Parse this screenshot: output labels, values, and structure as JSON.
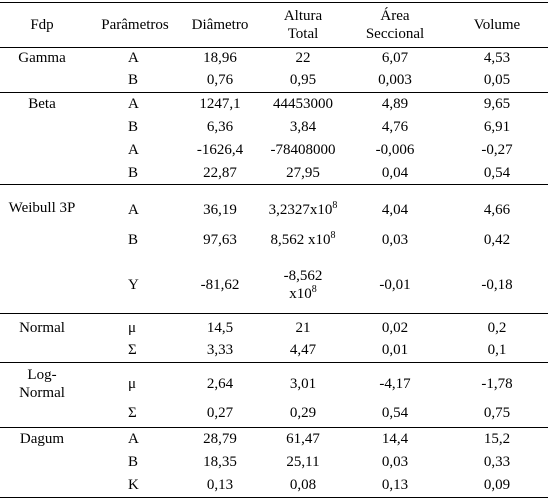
{
  "table": {
    "header": [
      "Fdp",
      "Parâmetros",
      "Diâmetro",
      "Altura Total",
      "Área Seccional",
      "Volume"
    ],
    "groups": [
      {
        "fdp": "Gamma",
        "rows": [
          [
            "A",
            "18,96",
            "22",
            "6,07",
            "4,53"
          ],
          [
            "B",
            "0,76",
            "0,95",
            "0,003",
            "0,05"
          ]
        ]
      },
      {
        "fdp": "Beta",
        "rows": [
          [
            "A",
            "1247,1",
            "44453000",
            "4,89",
            "9,65"
          ],
          [
            "B",
            "6,36",
            "3,84",
            "4,76",
            "6,91"
          ],
          [
            "A",
            "-1626,4",
            "-78408000",
            "-0,006",
            "-0,27"
          ],
          [
            "B",
            "22,87",
            "27,95",
            "0,04",
            "0,54"
          ]
        ]
      },
      {
        "fdp": "Weibull 3P",
        "rows": [
          [
            "A",
            "36,19",
            {
              "base": "3,2327x10",
              "sup": "8"
            },
            "4,04",
            "4,66"
          ],
          [
            "B",
            "97,63",
            {
              "base": "8,562 x10",
              "sup": "8"
            },
            "0,03",
            "0,42"
          ],
          [
            "Υ",
            "-81,62",
            {
              "base": "-8,562 x10",
              "sup": "8"
            },
            "-0,01",
            "-0,18"
          ]
        ]
      },
      {
        "fdp": "Normal",
        "rows": [
          [
            "μ",
            "14,5",
            "21",
            "0,02",
            "0,2"
          ],
          [
            "Σ",
            "3,33",
            "4,47",
            "0,01",
            "0,1"
          ]
        ]
      },
      {
        "fdp": "Log-Normal",
        "rows": [
          [
            "μ",
            "2,64",
            "3,01",
            "-4,17",
            "-1,78"
          ],
          [
            "Σ",
            "0,27",
            "0,29",
            "0,54",
            "0,75"
          ]
        ]
      },
      {
        "fdp": "Dagum",
        "rows": [
          [
            "A",
            "28,79",
            "61,47",
            "14,4",
            "15,2"
          ],
          [
            "B",
            "18,35",
            "25,11",
            "0,03",
            "0,33"
          ],
          [
            "K",
            "0,13",
            "0,08",
            "0,13",
            "0,09"
          ]
        ]
      }
    ]
  }
}
